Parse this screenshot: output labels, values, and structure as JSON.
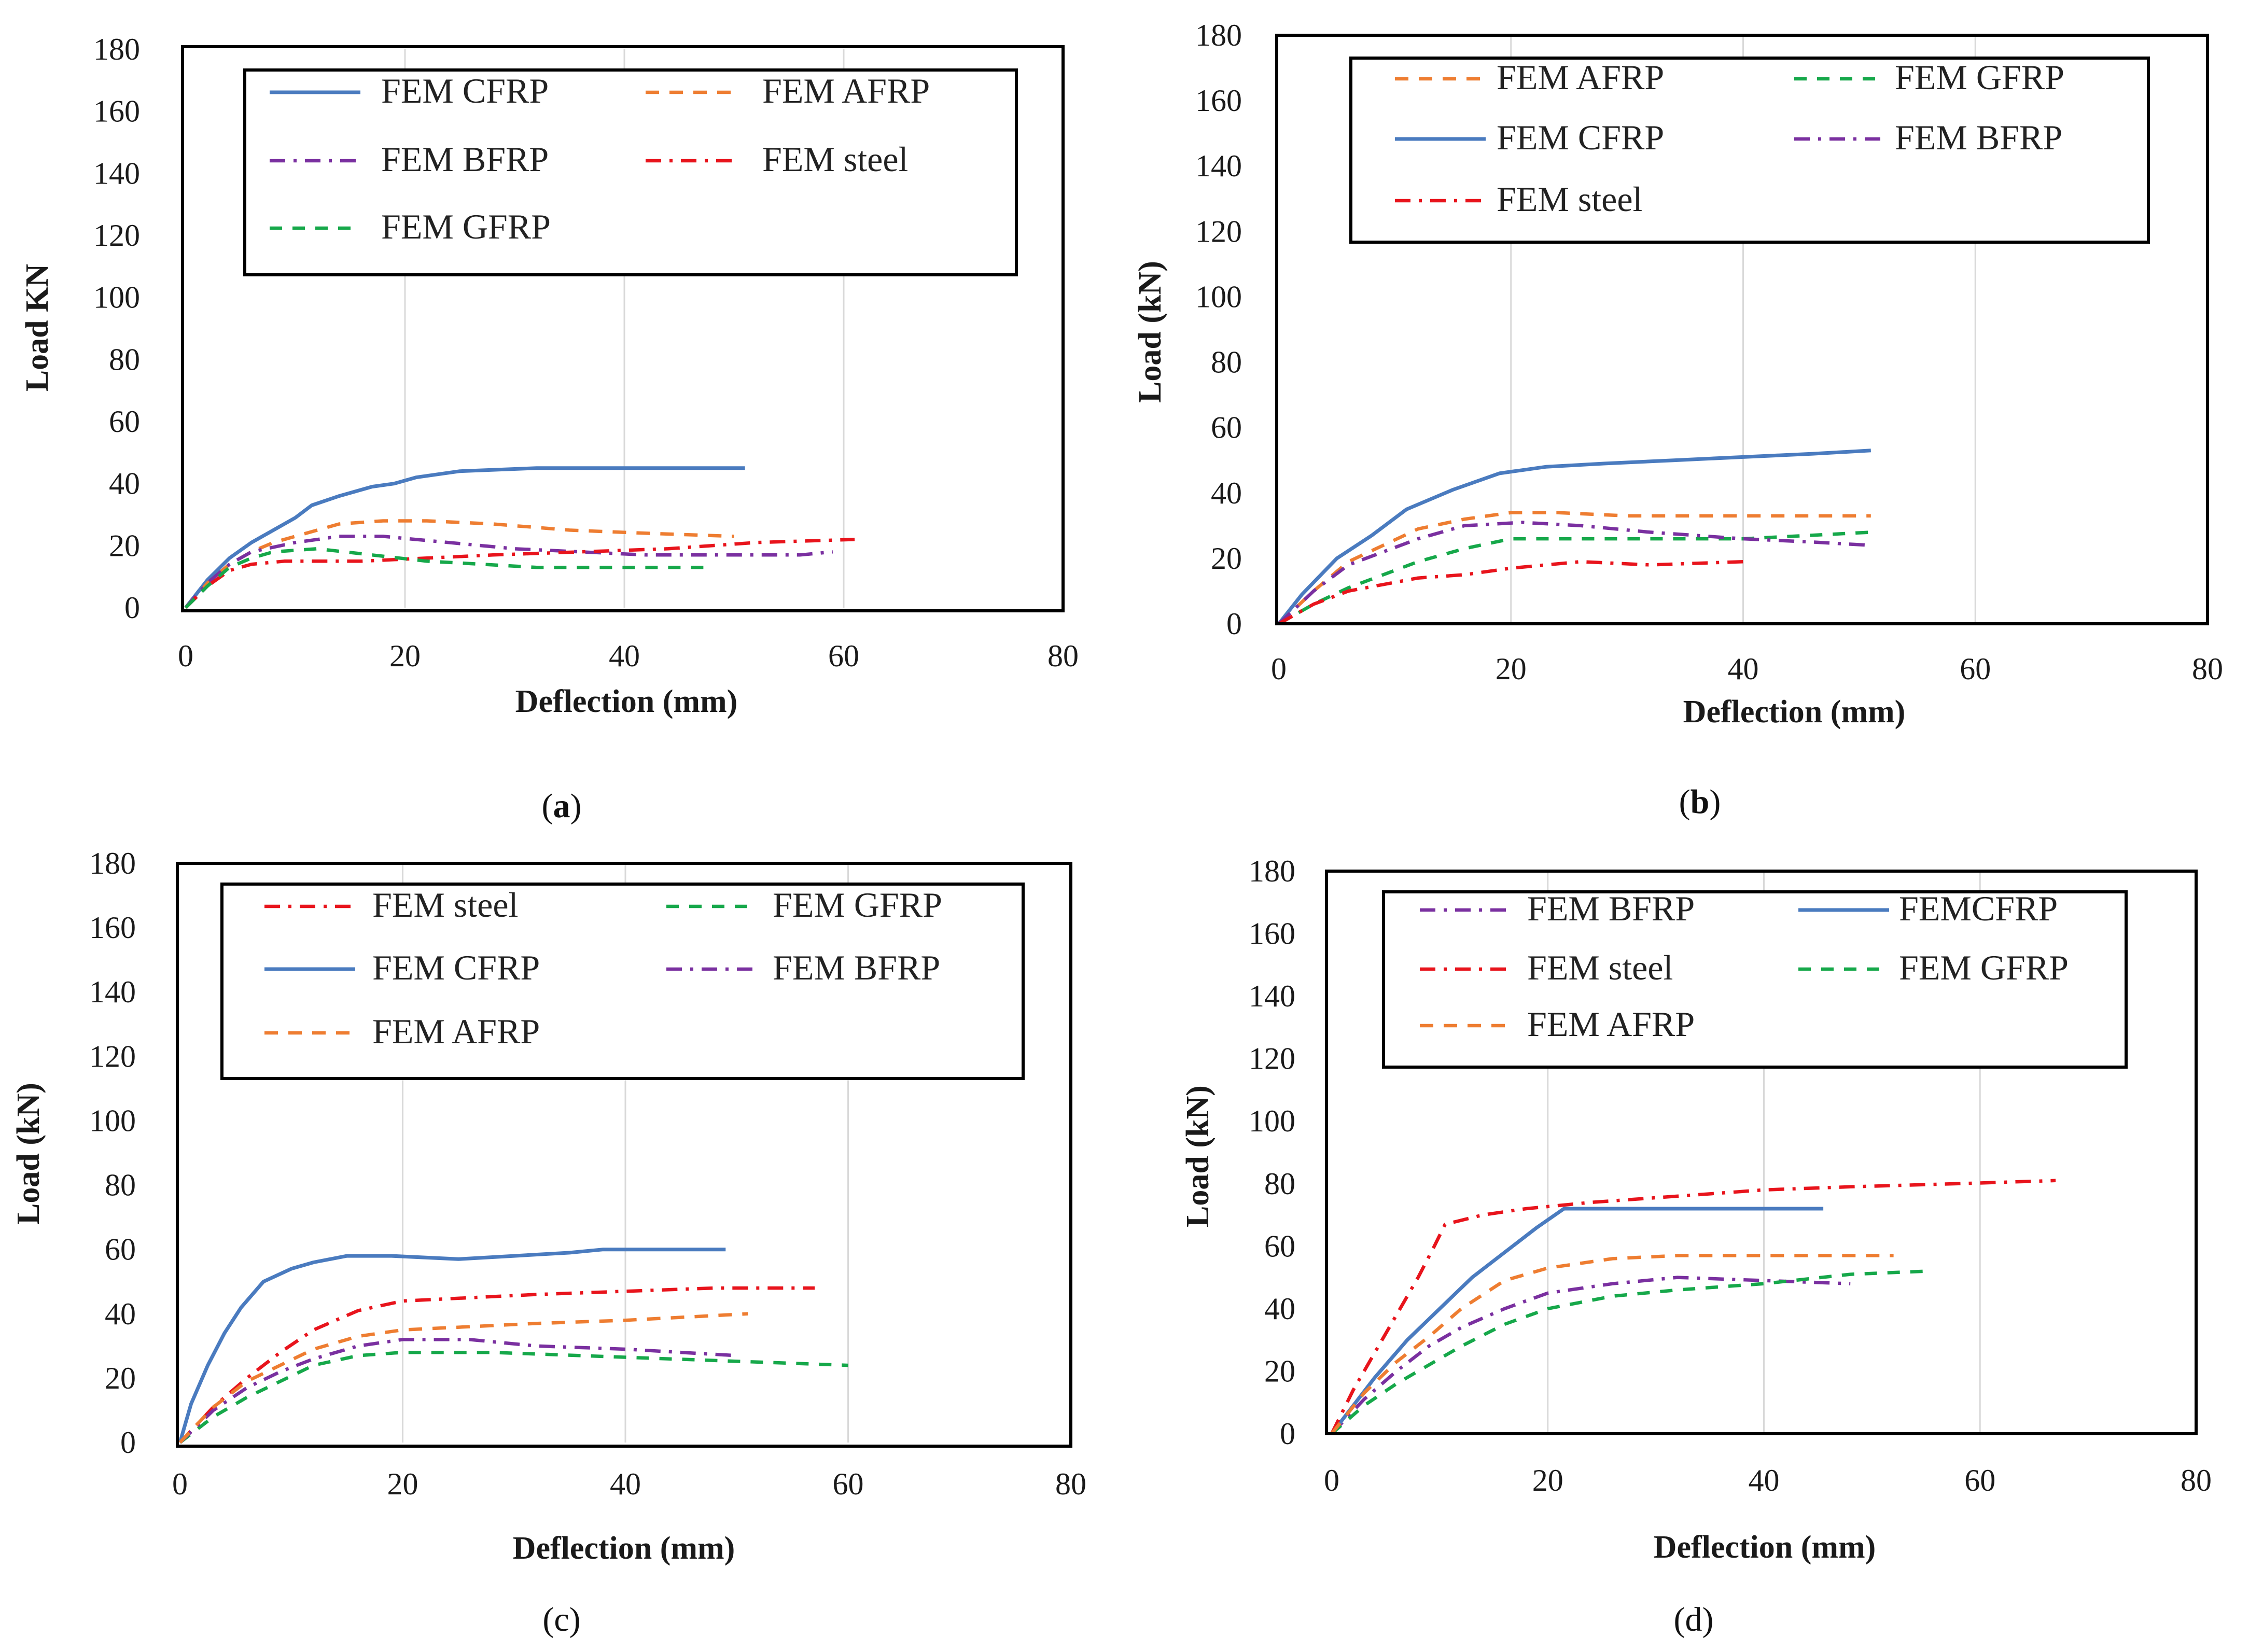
{
  "chart_data": [
    {
      "type": "line",
      "caption_pre": "(",
      "caption_letter": "a",
      "caption_post": ")",
      "caption_bold": true,
      "xlabel": "Deflection  (mm)",
      "ylabel": "Load KN",
      "xlim": [
        0,
        80
      ],
      "ylim": [
        0,
        180
      ],
      "xticks": [
        "0",
        "20",
        "40",
        "60",
        "80"
      ],
      "yticks": [
        "0",
        "20",
        "40",
        "60",
        "80",
        "100",
        "120",
        "140",
        "160",
        "180"
      ],
      "series": [
        {
          "name": "FEM CFRP",
          "style": "cfrp",
          "x": [
            0,
            2,
            4,
            6,
            8,
            10,
            11.5,
            14,
            17,
            19,
            21,
            25,
            32,
            51
          ],
          "y": [
            0,
            9,
            16,
            21,
            25,
            29,
            33,
            36,
            39,
            40,
            42,
            44,
            45,
            45
          ]
        },
        {
          "name": "FEM AFRP",
          "style": "afrp",
          "x": [
            0,
            2,
            4,
            6,
            8,
            11,
            14,
            18,
            22,
            28,
            35,
            42,
            50
          ],
          "y": [
            0,
            8,
            14,
            18,
            21,
            24,
            27,
            28,
            28,
            27,
            25,
            24,
            23
          ]
        },
        {
          "name": "FEM BFRP",
          "style": "bfrp",
          "x": [
            0,
            2,
            4,
            6,
            10,
            14,
            18,
            24,
            30,
            36,
            42,
            50,
            56,
            59
          ],
          "y": [
            0,
            8,
            14,
            18,
            21,
            23,
            23,
            21,
            19,
            18,
            17,
            17,
            17,
            18
          ]
        },
        {
          "name": "FEM steel",
          "style": "steel",
          "x": [
            0,
            2,
            4,
            6,
            9,
            12,
            16,
            22,
            28,
            36,
            44,
            52,
            61
          ],
          "y": [
            0,
            7,
            12,
            14,
            15,
            15,
            15,
            16,
            17,
            18,
            19,
            21,
            22
          ]
        },
        {
          "name": "FEM GFRP",
          "style": "gfrp",
          "x": [
            0,
            2,
            4,
            6,
            8,
            12,
            17,
            22,
            27,
            32,
            40,
            48
          ],
          "y": [
            0,
            7,
            13,
            16,
            18,
            19,
            17,
            15,
            14,
            13,
            13,
            13
          ]
        }
      ]
    },
    {
      "type": "line",
      "caption_pre": "(",
      "caption_letter": "b",
      "caption_post": ")",
      "caption_bold": true,
      "xlabel": "Deflection (mm)",
      "ylabel": "Load  (kN)",
      "xlim": [
        0,
        80
      ],
      "ylim": [
        0,
        180
      ],
      "xticks": [
        "0",
        "20",
        "40",
        "60",
        "80"
      ],
      "yticks": [
        "0",
        "20",
        "40",
        "60",
        "80",
        "100",
        "120",
        "140",
        "160",
        "180"
      ],
      "series": [
        {
          "name": "FEM AFRP",
          "style": "afrp",
          "x": [
            0,
            3,
            6,
            9,
            12,
            16,
            20,
            24,
            30,
            40,
            51
          ],
          "y": [
            0,
            10,
            19,
            24,
            29,
            32,
            34,
            34,
            33,
            33,
            33
          ]
        },
        {
          "name": "FEM GFRP",
          "style": "gfrp",
          "x": [
            0,
            3,
            6,
            9,
            12,
            16,
            20,
            26,
            32,
            40,
            51
          ],
          "y": [
            0,
            6,
            11,
            15,
            19,
            23,
            26,
            26,
            26,
            26,
            28
          ]
        },
        {
          "name": "FEM CFRP",
          "style": "cfrp",
          "x": [
            0,
            2,
            5,
            8,
            11,
            15,
            19,
            23,
            28,
            34,
            40,
            46,
            51
          ],
          "y": [
            0,
            9,
            20,
            27,
            35,
            41,
            46,
            48,
            49,
            50,
            51,
            52,
            53
          ]
        },
        {
          "name": "FEM BFRP",
          "style": "bfrp",
          "x": [
            0,
            3,
            6,
            9,
            12,
            16,
            21,
            26,
            32,
            40,
            46,
            51
          ],
          "y": [
            0,
            10,
            18,
            22,
            26,
            30,
            31,
            30,
            28,
            26,
            25,
            24
          ]
        },
        {
          "name": "FEM steel",
          "style": "steel",
          "x": [
            0,
            3,
            6,
            9,
            12,
            16,
            20,
            26,
            32,
            40
          ],
          "y": [
            0,
            6,
            10,
            12,
            14,
            15,
            17,
            19,
            18,
            19
          ]
        }
      ]
    },
    {
      "type": "line",
      "caption_pre": "(",
      "caption_letter": "c",
      "caption_post": ")",
      "caption_bold": false,
      "xlabel": "Deflection  (mm)",
      "ylabel": "Load (kN)",
      "xlim": [
        0,
        80
      ],
      "ylim": [
        0,
        180
      ],
      "xticks": [
        "0",
        "20",
        "40",
        "60",
        "80"
      ],
      "yticks": [
        "0",
        "20",
        "40",
        "60",
        "80",
        "100",
        "120",
        "140",
        "160",
        "180"
      ],
      "series": [
        {
          "name": "FEM steel",
          "style": "steel",
          "x": [
            0,
            3,
            6,
            9,
            12,
            16,
            20,
            26,
            32,
            40,
            48,
            57
          ],
          "y": [
            0,
            11,
            20,
            28,
            35,
            41,
            44,
            45,
            46,
            47,
            48,
            48
          ]
        },
        {
          "name": "FEM GFRP",
          "style": "gfrp",
          "x": [
            0,
            3,
            6,
            9,
            12,
            16,
            20,
            28,
            36,
            44,
            52,
            60
          ],
          "y": [
            0,
            8,
            14,
            19,
            24,
            27,
            28,
            28,
            27,
            26,
            25,
            24
          ]
        },
        {
          "name": "FEM CFRP",
          "style": "cfrp",
          "x": [
            0,
            1,
            2.5,
            4,
            5.5,
            7.5,
            10,
            12,
            15,
            19,
            25,
            30,
            35,
            38,
            45,
            49
          ],
          "y": [
            0,
            12,
            24,
            34,
            42,
            50,
            54,
            56,
            58,
            58,
            57,
            58,
            59,
            60,
            60,
            60
          ]
        },
        {
          "name": "FEM BFRP",
          "style": "bfrp",
          "x": [
            0,
            3,
            6,
            9,
            12,
            16,
            20,
            26,
            32,
            40,
            50
          ],
          "y": [
            0,
            10,
            17,
            22,
            26,
            30,
            32,
            32,
            30,
            29,
            27
          ]
        },
        {
          "name": "FEM AFRP",
          "style": "afrp",
          "x": [
            0,
            3,
            6,
            9,
            12,
            16,
            20,
            26,
            32,
            40,
            51
          ],
          "y": [
            0,
            11,
            19,
            24,
            29,
            33,
            35,
            36,
            37,
            38,
            40
          ]
        }
      ]
    },
    {
      "type": "line",
      "caption_pre": "(",
      "caption_letter": "d",
      "caption_post": ")",
      "caption_bold": false,
      "xlabel": "Deflection (mm)",
      "ylabel": "Load (kN)",
      "xlim": [
        0,
        80
      ],
      "ylim": [
        0,
        180
      ],
      "xticks": [
        "0",
        "20",
        "40",
        "60",
        "80"
      ],
      "yticks": [
        "0",
        "20",
        "40",
        "60",
        "80",
        "100",
        "120",
        "140",
        "160",
        "180"
      ],
      "series": [
        {
          "name": "FEM BFRP",
          "style": "bfrp",
          "x": [
            0,
            3,
            6,
            9,
            12,
            16,
            20,
            26,
            32,
            40,
            48
          ],
          "y": [
            0,
            11,
            20,
            28,
            34,
            40,
            45,
            48,
            50,
            49,
            48
          ]
        },
        {
          "name": "FEMCFRP",
          "style": "cfrp",
          "x": [
            0,
            2,
            4,
            7,
            10,
            13,
            16,
            19,
            21.5,
            30,
            38,
            45.5
          ],
          "y": [
            0,
            9,
            18,
            30,
            40,
            50,
            58,
            66,
            72,
            72,
            72,
            72
          ]
        },
        {
          "name": "FEM steel",
          "style": "steel",
          "x": [
            0,
            2,
            4,
            6,
            8,
            9.5,
            10.5,
            14,
            18,
            24,
            32,
            40,
            48,
            58,
            67
          ],
          "y": [
            0,
            14,
            26,
            38,
            50,
            60,
            67,
            70,
            72,
            74,
            76,
            78,
            79,
            80,
            81
          ]
        },
        {
          "name": "FEM GFRP",
          "style": "gfrp",
          "x": [
            0,
            3,
            6,
            9,
            12,
            16,
            20,
            26,
            32,
            40,
            48,
            55
          ],
          "y": [
            0,
            9,
            16,
            22,
            28,
            35,
            40,
            44,
            46,
            48,
            51,
            52
          ]
        },
        {
          "name": "FEM AFRP",
          "style": "afrp",
          "x": [
            0,
            3,
            6,
            9,
            12,
            16,
            20,
            26,
            32,
            40,
            46,
            52
          ],
          "y": [
            0,
            13,
            23,
            31,
            40,
            49,
            53,
            56,
            57,
            57,
            57,
            57
          ]
        }
      ]
    }
  ],
  "colors": {
    "cfrp": "#4a7bbf",
    "afrp": "#ee7d31",
    "bfrp": "#7a30a0",
    "steel": "#e8141c",
    "gfrp": "#16a84a",
    "gridline": "#d9d9d9",
    "frame": "#000000"
  }
}
